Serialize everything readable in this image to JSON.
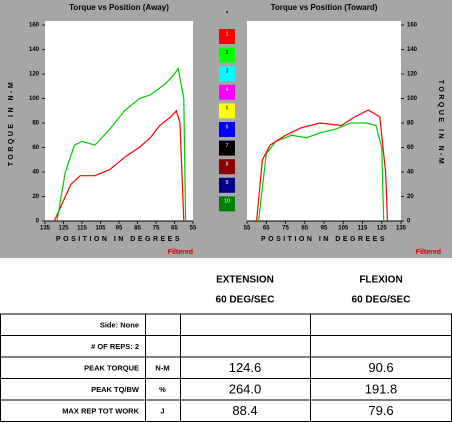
{
  "chart_data": [
    {
      "type": "line",
      "title": "Torque vs Position (Away)",
      "y_label": "TORQUE IN N-M",
      "x_label": "POSITION IN DEGREES",
      "note": "Filtered",
      "y_axis_side": "left",
      "xlim": [
        135,
        55
      ],
      "xticks": [
        135,
        125,
        115,
        105,
        95,
        85,
        75,
        65,
        55
      ],
      "ylim": [
        0,
        160
      ],
      "yticks": [
        0,
        20,
        40,
        60,
        80,
        100,
        120,
        140,
        160
      ],
      "series": [
        {
          "color": "#ff0000",
          "x": [
            130,
            127,
            121,
            116,
            108,
            100,
            92,
            84,
            78,
            73,
            67,
            64,
            62,
            60
          ],
          "values": [
            0,
            10,
            30,
            37,
            37,
            42,
            52,
            60,
            68,
            78,
            85,
            90,
            80,
            0
          ]
        },
        {
          "color": "#00cc00",
          "x": [
            128.5,
            124,
            119,
            115,
            108,
            100,
            92,
            84,
            78,
            70,
            65,
            63,
            60,
            59
          ],
          "values": [
            0,
            40,
            62,
            65,
            62,
            75,
            90,
            100,
            103,
            112,
            120,
            124.6,
            100,
            0
          ]
        }
      ]
    },
    {
      "type": "line",
      "title": "Torque vs Position (Toward)",
      "y_label": "TORQUE IN N-M",
      "x_label": "POSITION IN DEGREES",
      "note": "Filtered",
      "y_axis_side": "right",
      "xlim": [
        55,
        135
      ],
      "xticks": [
        55,
        65,
        75,
        85,
        95,
        105,
        115,
        125,
        135
      ],
      "ylim": [
        0,
        160
      ],
      "yticks": [
        0,
        20,
        40,
        60,
        80,
        100,
        120,
        140,
        160
      ],
      "series": [
        {
          "color": "#00cc00",
          "x": [
            61,
            65,
            70,
            78,
            86,
            93,
            101,
            109,
            117,
            122,
            125,
            126
          ],
          "values": [
            0,
            55,
            65,
            70,
            68,
            72,
            75,
            80,
            80,
            78,
            60,
            0
          ]
        },
        {
          "color": "#ff0000",
          "x": [
            60,
            63,
            67,
            75,
            83,
            93,
            104,
            111,
            118,
            124,
            127,
            128
          ],
          "values": [
            0,
            50,
            62,
            70,
            76,
            80,
            78,
            85,
            90.6,
            85,
            40,
            0
          ]
        }
      ]
    }
  ],
  "swatches": {
    "star": "*",
    "items": [
      {
        "label": "1",
        "color": "#ff0000"
      },
      {
        "label": "2",
        "color": "#00ff00"
      },
      {
        "label": "3",
        "color": "#00ffff"
      },
      {
        "label": "4",
        "color": "#ff00ff"
      },
      {
        "label": "5",
        "color": "#ffff00"
      },
      {
        "label": "6",
        "color": "#0000ff"
      },
      {
        "label": "7",
        "color": "#000000"
      },
      {
        "label": "8",
        "color": "#8b0000"
      },
      {
        "label": "9",
        "color": "#00008b"
      },
      {
        "label": "10",
        "color": "#008000"
      }
    ]
  },
  "table": {
    "headers": [
      [
        "EXTENSION",
        "60 DEG/SEC"
      ],
      [
        "FLEXION",
        "60 DEG/SEC"
      ]
    ],
    "rows": [
      [
        "Side: None"
      ],
      [
        "# OF REPS: 2"
      ],
      [
        "PEAK TORQUE",
        "N-M",
        "124.6",
        "90.6"
      ],
      [
        "PEAK TQ/BW",
        "%",
        "264.0",
        "191.8"
      ],
      [
        "MAX REP TOT WORK",
        "J",
        "88.4",
        "79.6"
      ]
    ]
  }
}
